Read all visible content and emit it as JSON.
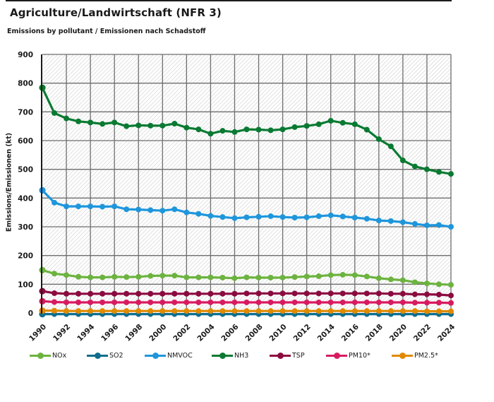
{
  "header": {
    "title": "Agriculture/Landwirtschaft (NFR 3)",
    "subtitle": "Emissions by pollutant / Emissionen nach Schadstoff"
  },
  "axes": {
    "y_label": "Emissions/Emissionen (kt)",
    "y_ticks": [
      "0",
      "100",
      "200",
      "300",
      "400",
      "500",
      "600",
      "700",
      "800",
      "900"
    ],
    "x_ticks": [
      "1990",
      "1992",
      "1994",
      "1996",
      "1998",
      "2000",
      "2002",
      "2004",
      "2006",
      "2008",
      "2010",
      "2012",
      "2014",
      "2016",
      "2018",
      "2020",
      "2022",
      "2024"
    ]
  },
  "legend": [
    {
      "label": "NOx",
      "color": "#6cb33f"
    },
    {
      "label": "SO2",
      "color": "#0e6e8e"
    },
    {
      "label": "NMVOC",
      "color": "#1e96dc"
    },
    {
      "label": "NH3",
      "color": "#0a7a32"
    },
    {
      "label": "TSP",
      "color": "#8b0a3f"
    },
    {
      "label": "PM10*",
      "color": "#d81b60"
    },
    {
      "label": "PM2.5*",
      "color": "#e08a00"
    }
  ],
  "chart_data": {
    "type": "line",
    "title": "Agriculture/Landwirtschaft (NFR 3)",
    "subtitle": "Emissions by pollutant / Emissionen nach Schadstoff",
    "xlabel": "",
    "ylabel": "Emissions/Emissionen (kt)",
    "ylim": [
      0,
      900
    ],
    "grid": true,
    "legend_position": "bottom",
    "x": [
      1990,
      1991,
      1992,
      1993,
      1994,
      1995,
      1996,
      1997,
      1998,
      1999,
      2000,
      2001,
      2002,
      2003,
      2004,
      2005,
      2006,
      2007,
      2008,
      2009,
      2010,
      2011,
      2012,
      2013,
      2014,
      2015,
      2016,
      2017,
      2018,
      2019,
      2020,
      2021,
      2022,
      2023,
      2024
    ],
    "series": [
      {
        "name": "NOx",
        "color": "#6cb33f",
        "values": [
          149,
          137,
          132,
          126,
          124,
          124,
          126,
          125,
          126,
          129,
          130,
          130,
          124,
          124,
          124,
          123,
          121,
          124,
          123,
          123,
          123,
          125,
          127,
          128,
          132,
          133,
          132,
          127,
          121,
          117,
          114,
          107,
          103,
          100,
          98
        ]
      },
      {
        "name": "SO2",
        "color": "#0e6e8e",
        "values": [
          1,
          1,
          1,
          1,
          1,
          1,
          1,
          1,
          1,
          1,
          1,
          1,
          1,
          1,
          1,
          1,
          1,
          1,
          1,
          1,
          1,
          1,
          1,
          1,
          1,
          1,
          1,
          1,
          1,
          1,
          1,
          1,
          1,
          1,
          1
        ]
      },
      {
        "name": "NMVOC",
        "color": "#1e96dc",
        "values": [
          427,
          384,
          371,
          371,
          371,
          370,
          371,
          361,
          360,
          358,
          356,
          361,
          350,
          345,
          338,
          334,
          330,
          333,
          335,
          337,
          334,
          332,
          333,
          337,
          340,
          336,
          332,
          328,
          322,
          320,
          316,
          310,
          305,
          306,
          300
        ]
      },
      {
        "name": "NH3",
        "color": "#0a7a32",
        "values": [
          784,
          696,
          677,
          667,
          663,
          658,
          663,
          650,
          653,
          652,
          652,
          659,
          645,
          639,
          624,
          634,
          630,
          639,
          638,
          636,
          639,
          647,
          651,
          657,
          669,
          662,
          657,
          638,
          605,
          580,
          531,
          510,
          500,
          491,
          484
        ]
      },
      {
        "name": "TSP",
        "color": "#8b0a3f",
        "values": [
          76,
          69,
          67,
          67,
          67,
          67,
          67,
          67,
          67,
          67,
          67,
          67,
          67,
          67,
          67,
          67,
          67,
          68,
          68,
          68,
          68,
          68,
          68,
          68,
          68,
          68,
          68,
          68,
          68,
          67,
          67,
          65,
          65,
          64,
          61
        ]
      },
      {
        "name": "PM10*",
        "color": "#d81b60",
        "values": [
          41,
          38,
          37,
          37,
          37,
          37,
          37,
          37,
          37,
          37,
          37,
          37,
          37,
          37,
          37,
          37,
          37,
          37,
          37,
          37,
          37,
          37,
          37,
          37,
          37,
          37,
          37,
          37,
          37,
          37,
          37,
          36,
          36,
          36,
          35
        ]
      },
      {
        "name": "PM2.5*",
        "color": "#e08a00",
        "values": [
          8,
          8,
          7,
          7,
          7,
          7,
          7,
          7,
          7,
          7,
          7,
          7,
          7,
          7,
          7,
          7,
          7,
          7,
          7,
          7,
          7,
          7,
          7,
          7,
          7,
          7,
          7,
          7,
          7,
          7,
          7,
          7,
          6,
          6,
          6
        ]
      }
    ]
  }
}
